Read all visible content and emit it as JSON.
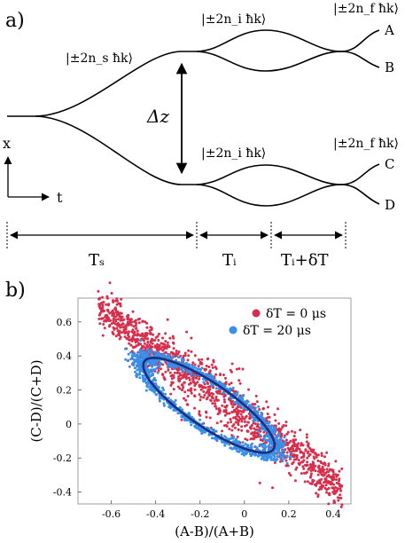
{
  "panel_a": {
    "label": "a)",
    "state_s": "|±2n_s ħk⟩",
    "state_i_top": "|±2n_i ħk⟩",
    "state_i_bottom": "|±2n_i ħk⟩",
    "state_f_top": "|±2n_f ħk⟩",
    "state_f_bottom": "|±2n_f ħk⟩",
    "delta_z": "Δz",
    "port_A": "A",
    "port_B": "B",
    "port_C": "C",
    "port_D": "D",
    "axis_x": "x",
    "axis_t": "t",
    "time_Ts": "Tₛ",
    "time_Ti": "Tᵢ",
    "time_TidT": "Tᵢ+δT"
  },
  "panel_b": {
    "label": "b)"
  },
  "chart_data": {
    "type": "scatter",
    "xlabel": "(A-B)/(A+B)",
    "ylabel": "(C-D)/(C+D)",
    "xlim": [
      -0.75,
      0.48
    ],
    "ylim": [
      -0.47,
      0.74
    ],
    "xticks": [
      -0.6,
      -0.4,
      -0.2,
      0,
      0.2,
      0.4
    ],
    "xtick_labels": [
      "-0.6",
      "-0.4",
      "-0.2",
      "0",
      "0.2",
      "0.4"
    ],
    "yticks": [
      -0.4,
      -0.2,
      0,
      0.2,
      0.4,
      0.6
    ],
    "ytick_labels": [
      "-0.4",
      "-0.2",
      "0",
      "0.2",
      "0.4",
      "0.6"
    ],
    "legend_position": "top-right",
    "series": [
      {
        "name": "δT = 0 μs",
        "color": "#d62f4c",
        "shape": "correlated-line",
        "x_range": [
          -0.66,
          0.44
        ],
        "slope": -0.97,
        "intercept": 0.05,
        "points": 1400
      },
      {
        "name": "δT = 20 μs",
        "color": "#3a8ee8",
        "shape": "tilted-ellipse",
        "center": [
          -0.16,
          0.11
        ],
        "semi_axes": [
          0.4,
          0.12
        ],
        "tilt_degrees": -43,
        "points": 1300
      }
    ],
    "fit": {
      "type": "ellipse",
      "color": "#1a2f80",
      "center": [
        -0.16,
        0.11
      ],
      "semi_axes": [
        0.39,
        0.115
      ],
      "tilt_degrees": -43
    }
  }
}
